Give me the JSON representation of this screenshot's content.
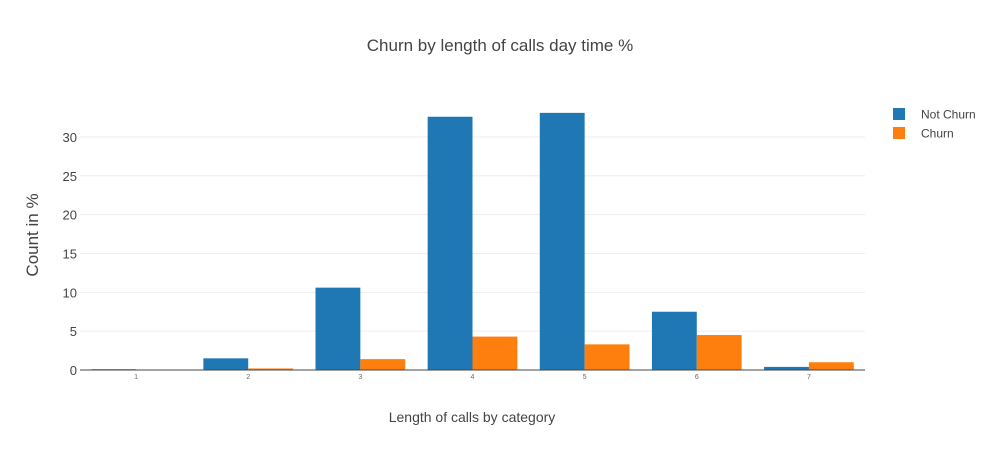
{
  "chart_data": {
    "type": "bar",
    "title": "Churn by length of calls day time %",
    "xlabel": "Length of calls by category",
    "ylabel": "Count in %",
    "categories": [
      "1",
      "2",
      "3",
      "4",
      "5",
      "6",
      "7"
    ],
    "ylim": [
      0,
      34.5
    ],
    "yticks": [
      0,
      5,
      10,
      15,
      20,
      25,
      30
    ],
    "grid": true,
    "legend_position": "top-right",
    "series": [
      {
        "name": "Not Churn",
        "color": "#1f77b4",
        "values": [
          0.1,
          1.5,
          10.6,
          32.6,
          33.1,
          7.5,
          0.4
        ]
      },
      {
        "name": "Churn",
        "color": "#ff7f0e",
        "values": [
          0.05,
          0.2,
          1.4,
          4.3,
          3.3,
          4.5,
          1.0
        ]
      }
    ]
  }
}
